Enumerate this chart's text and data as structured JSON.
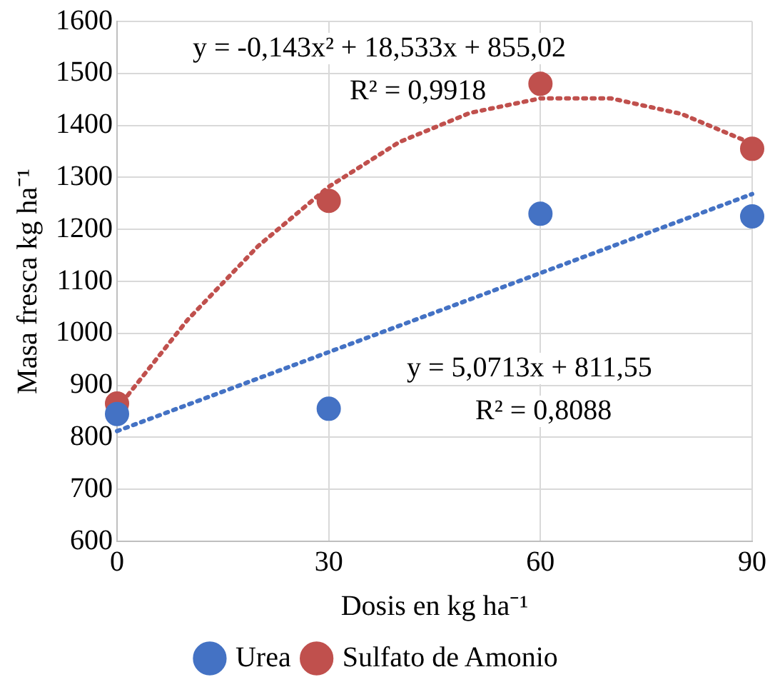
{
  "chart_data": {
    "type": "scatter",
    "xlabel": "Dosis en kg ha⁻¹",
    "ylabel": "Masa fresca kg ha⁻¹",
    "xlim": [
      0,
      90
    ],
    "xticks": [
      0,
      30,
      60,
      90
    ],
    "ylim": [
      600,
      1600
    ],
    "yticks": [
      600,
      700,
      800,
      900,
      1000,
      1100,
      1200,
      1300,
      1400,
      1500,
      1600
    ],
    "grid": true,
    "legend": "bottom",
    "marker": "circle",
    "annotations": [
      "y = -0,143x² + 18,533x + 855,02",
      "R² = 0,9918",
      "y = 5,0713x + 811,55",
      "R² = 0,8088"
    ],
    "series": [
      {
        "name": "Urea",
        "color": "#4472c4",
        "x": [
          0,
          30,
          60,
          90
        ],
        "values": [
          845,
          855,
          1230,
          1225
        ]
      },
      {
        "name": "Sulfato de Amonio",
        "color": "#c0504d",
        "x": [
          0,
          30,
          60,
          90
        ],
        "values": [
          865,
          1255,
          1480,
          1355
        ]
      },
      {
        "type": "line",
        "color": "#4472c4",
        "line_style": "dotted",
        "marker": "none",
        "x": [
          0,
          90
        ],
        "values": [
          812,
          1268
        ]
      },
      {
        "type": "line",
        "color": "#c0504d",
        "line_style": "dotted",
        "marker": "none",
        "x": [
          0,
          10,
          20,
          30,
          40,
          50,
          60,
          70,
          80,
          90
        ],
        "values": [
          855,
          1026,
          1168,
          1282,
          1368,
          1424,
          1452,
          1452,
          1422,
          1365
        ]
      }
    ]
  }
}
